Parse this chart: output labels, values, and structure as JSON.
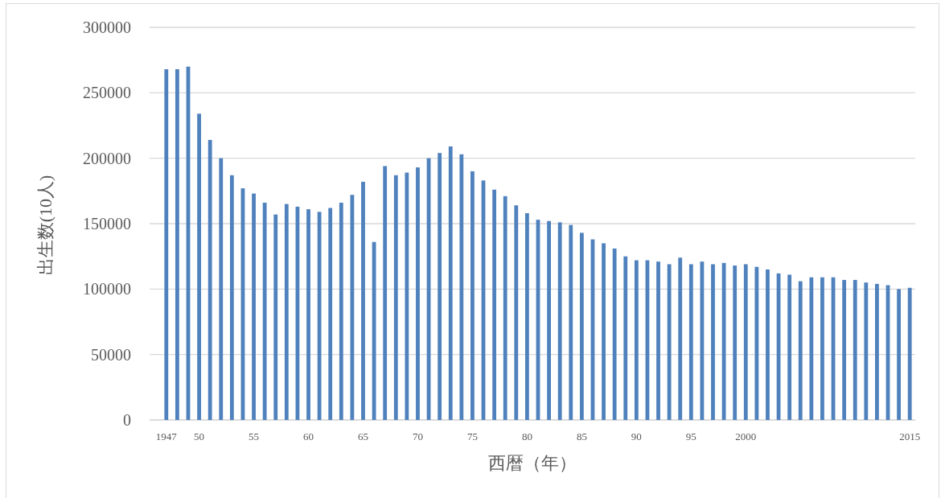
{
  "chart_data": {
    "type": "bar",
    "xlabel": "西暦（年）",
    "ylabel": "出生数(10人)",
    "categories": [
      "1947",
      null,
      null,
      "50",
      null,
      null,
      null,
      null,
      "55",
      null,
      null,
      null,
      null,
      "60",
      null,
      null,
      null,
      null,
      "65",
      null,
      null,
      null,
      null,
      "70",
      null,
      null,
      null,
      null,
      "75",
      null,
      null,
      null,
      null,
      "80",
      null,
      null,
      null,
      null,
      "85",
      null,
      null,
      null,
      null,
      "90",
      null,
      null,
      null,
      null,
      "95",
      null,
      null,
      null,
      null,
      "2000",
      null,
      null,
      null,
      null,
      null,
      null,
      null,
      null,
      null,
      null,
      null,
      null,
      null,
      null,
      "2015"
    ],
    "values": [
      268000,
      268000,
      270000,
      234000,
      214000,
      200000,
      187000,
      177000,
      173000,
      166000,
      157000,
      165000,
      163000,
      161000,
      159000,
      162000,
      166000,
      172000,
      182000,
      136000,
      194000,
      187000,
      189000,
      193000,
      200000,
      204000,
      209000,
      203000,
      190000,
      183000,
      176000,
      171000,
      164000,
      158000,
      153000,
      152000,
      151000,
      149000,
      143000,
      138000,
      135000,
      131000,
      125000,
      122000,
      122000,
      121000,
      119000,
      124000,
      119000,
      121000,
      119000,
      120000,
      118000,
      119000,
      117000,
      115000,
      112000,
      111000,
      106000,
      109000,
      109000,
      109000,
      107000,
      107000,
      105000,
      104000,
      103000,
      100000,
      101000
    ],
    "color": "#4f81bd",
    "ylim": [
      0,
      300000
    ],
    "yticks": [
      0,
      50000,
      100000,
      150000,
      200000,
      250000,
      300000
    ],
    "grid": "y"
  }
}
